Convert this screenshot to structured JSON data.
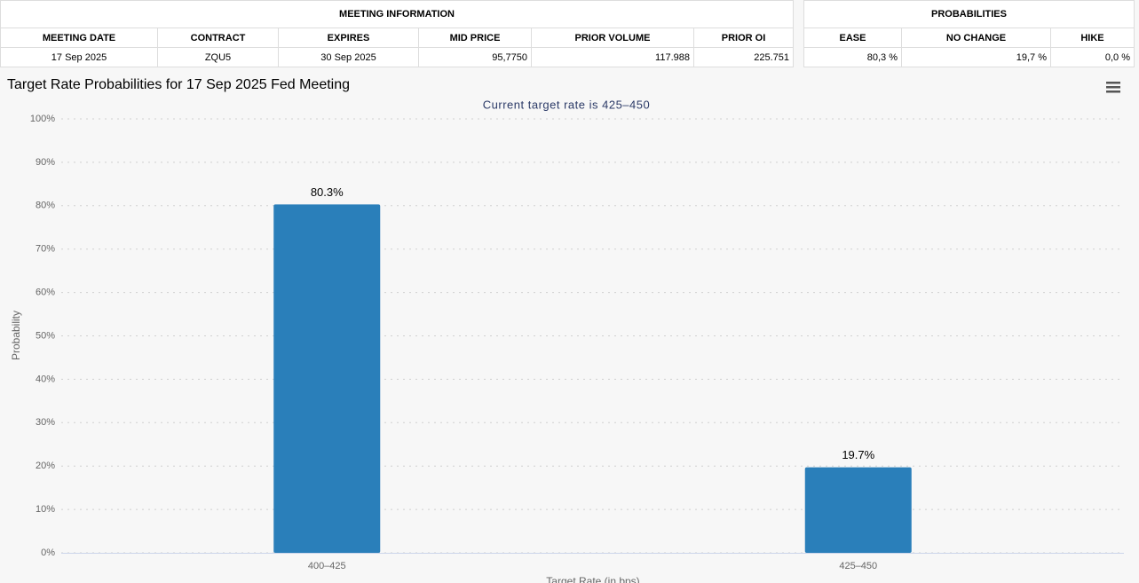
{
  "meeting_information": {
    "title": "MEETING INFORMATION",
    "headers": [
      "MEETING DATE",
      "CONTRACT",
      "EXPIRES",
      "MID PRICE",
      "PRIOR VOLUME",
      "PRIOR OI"
    ],
    "rows": [
      [
        "17 Sep 2025",
        "ZQU5",
        "30 Sep 2025",
        "95,7750",
        "117.988",
        "225.751"
      ]
    ]
  },
  "probabilities": {
    "title": "PROBABILITIES",
    "headers": [
      "EASE",
      "NO CHANGE",
      "HIKE"
    ],
    "rows": [
      [
        "80,3 %",
        "19,7 %",
        "0,0 %"
      ]
    ]
  },
  "chart_data": {
    "type": "bar",
    "title": "Target Rate Probabilities for 17 Sep 2025 Fed Meeting",
    "subtitle": "Current target rate is 425–450",
    "x_label": "Target Rate (in bps)",
    "y_label": "Probability",
    "categories": [
      "400–425",
      "425–450"
    ],
    "values": [
      80.3,
      19.7
    ],
    "value_labels": [
      "80.3%",
      "19.7%"
    ],
    "color": "#2a7fba",
    "ylim": [
      0,
      100
    ],
    "yticks": [
      {
        "value": 0,
        "label": "0%"
      },
      {
        "value": 10,
        "label": "10%"
      },
      {
        "value": 20,
        "label": "20%"
      },
      {
        "value": 30,
        "label": "30%"
      },
      {
        "value": 40,
        "label": "40%"
      },
      {
        "value": 50,
        "label": "50%"
      },
      {
        "value": 60,
        "label": "60%"
      },
      {
        "value": 70,
        "label": "70%"
      },
      {
        "value": 80,
        "label": "80%"
      },
      {
        "value": 90,
        "label": "90%"
      },
      {
        "value": 100,
        "label": "100%"
      }
    ],
    "grid": true
  }
}
